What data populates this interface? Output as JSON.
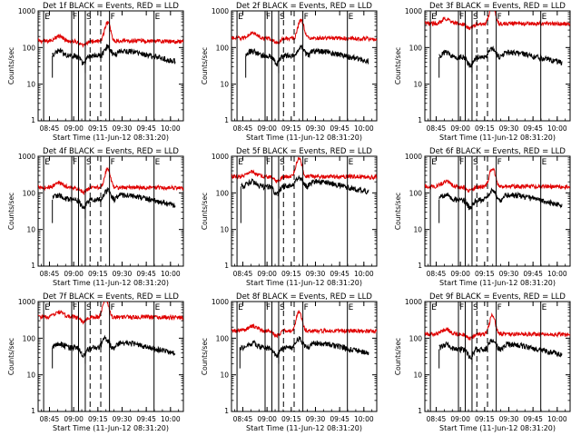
{
  "chart_data": [
    {
      "type": "line",
      "title": "Det 1f BLACK = Events, RED = LLD",
      "xlabel": "Start Time (11-Jun-12 08:31:20)",
      "ylabel": "Counts/sec",
      "yscale": "log",
      "ylim": [
        1,
        1000
      ],
      "xlim": [
        8.633,
        10.133
      ],
      "xticks": [
        "08:45",
        "09:00",
        "09:15",
        "09:30",
        "09:45",
        "10:00"
      ],
      "yticks": [
        "1",
        "10",
        "100",
        "1000"
      ],
      "events_start": 8.78,
      "events_end": 10.05,
      "red_base": 150,
      "black_base": 60,
      "peak_time": 9.35,
      "spike_time": 9.12,
      "lines": [
        {
          "t": 8.69,
          "label": "E",
          "style": "solid"
        },
        {
          "t": 8.98,
          "label": "F",
          "style": "solid"
        },
        {
          "t": 9.05,
          "label": "",
          "style": "solid"
        },
        {
          "t": 9.12,
          "label": "S",
          "style": "solid"
        },
        {
          "t": 9.17,
          "label": "",
          "style": "dashed"
        },
        {
          "t": 9.28,
          "label": "",
          "style": "dashed"
        },
        {
          "t": 9.37,
          "label": "F",
          "style": "solid"
        },
        {
          "t": 9.83,
          "label": "E",
          "style": "solid"
        }
      ]
    },
    {
      "type": "line",
      "title": "Det 2f BLACK = Events, RED = LLD",
      "xlabel": "Start Time (11-Jun-12 08:31:20)",
      "ylabel": "Counts/sec",
      "yscale": "log",
      "ylim": [
        1,
        1000
      ],
      "xlim": [
        8.633,
        10.133
      ],
      "xticks": [
        "08:45",
        "09:00",
        "09:15",
        "09:30",
        "09:45",
        "10:00"
      ],
      "yticks": [
        "1",
        "10",
        "100",
        "1000"
      ],
      "events_start": 8.78,
      "events_end": 10.05,
      "red_base": 180,
      "black_base": 60,
      "peak_time": 9.35,
      "spike_time": 9.12,
      "lines": [
        {
          "t": 8.69,
          "label": "E",
          "style": "solid"
        },
        {
          "t": 8.98,
          "label": "F",
          "style": "solid"
        },
        {
          "t": 9.05,
          "label": "",
          "style": "solid"
        },
        {
          "t": 9.12,
          "label": "S",
          "style": "solid"
        },
        {
          "t": 9.17,
          "label": "",
          "style": "dashed"
        },
        {
          "t": 9.28,
          "label": "",
          "style": "dashed"
        },
        {
          "t": 9.37,
          "label": "F",
          "style": "solid"
        },
        {
          "t": 9.83,
          "label": "E",
          "style": "solid"
        }
      ]
    },
    {
      "type": "line",
      "title": "Det 3f BLACK = Events, RED = LLD",
      "xlabel": "Start Time (11-Jun-12 08:31:20)",
      "ylabel": "Counts/sec",
      "yscale": "log",
      "ylim": [
        1,
        1000
      ],
      "xlim": [
        8.633,
        10.133
      ],
      "xticks": [
        "08:45",
        "09:00",
        "09:15",
        "09:30",
        "09:45",
        "10:00"
      ],
      "yticks": [
        "1",
        "10",
        "100",
        "1000"
      ],
      "events_start": 8.78,
      "events_end": 10.05,
      "red_base": 450,
      "black_base": 55,
      "peak_time": 9.33,
      "spike_time": 9.12,
      "lines": [
        {
          "t": 8.69,
          "label": "E",
          "style": "solid"
        },
        {
          "t": 8.98,
          "label": "F",
          "style": "solid"
        },
        {
          "t": 9.05,
          "label": "",
          "style": "solid"
        },
        {
          "t": 9.12,
          "label": "S",
          "style": "solid"
        },
        {
          "t": 9.17,
          "label": "",
          "style": "dashed"
        },
        {
          "t": 9.28,
          "label": "",
          "style": "dashed"
        },
        {
          "t": 9.37,
          "label": "F",
          "style": "solid"
        },
        {
          "t": 9.83,
          "label": "E",
          "style": "solid"
        }
      ]
    },
    {
      "type": "line",
      "title": "Det 4f BLACK = Events, RED = LLD",
      "xlabel": "Start Time (11-Jun-12 08:31:20)",
      "ylabel": "Counts/sec",
      "yscale": "log",
      "ylim": [
        1,
        1000
      ],
      "xlim": [
        8.633,
        10.133
      ],
      "xticks": [
        "08:45",
        "09:00",
        "09:15",
        "09:30",
        "09:45",
        "10:00"
      ],
      "yticks": [
        "1",
        "10",
        "100",
        "1000"
      ],
      "events_start": 8.78,
      "events_end": 10.05,
      "red_base": 140,
      "black_base": 65,
      "peak_time": 9.35,
      "spike_time": 9.12,
      "lines": [
        {
          "t": 8.69,
          "label": "E",
          "style": "solid"
        },
        {
          "t": 8.98,
          "label": "F",
          "style": "solid"
        },
        {
          "t": 9.05,
          "label": "",
          "style": "solid"
        },
        {
          "t": 9.12,
          "label": "S",
          "style": "solid"
        },
        {
          "t": 9.17,
          "label": "",
          "style": "dashed"
        },
        {
          "t": 9.28,
          "label": "",
          "style": "dashed"
        },
        {
          "t": 9.37,
          "label": "F",
          "style": "solid"
        },
        {
          "t": 9.83,
          "label": "E",
          "style": "solid"
        }
      ]
    },
    {
      "type": "line",
      "title": "Det 5f BLACK = Events, RED = LLD",
      "xlabel": "Start Time (11-Jun-12 08:31:20)",
      "ylabel": "Counts/sec",
      "yscale": "log",
      "ylim": [
        1,
        1000
      ],
      "xlim": [
        8.633,
        10.133
      ],
      "xticks": [
        "08:45",
        "09:00",
        "09:15",
        "09:30",
        "09:45",
        "10:00"
      ],
      "yticks": [
        "1",
        "10",
        "100",
        "1000"
      ],
      "events_start": 8.73,
      "events_end": 10.05,
      "red_base": 280,
      "black_base": 150,
      "peak_time": 9.33,
      "spike_time": 9.12,
      "lines": [
        {
          "t": 8.69,
          "label": "E",
          "style": "solid"
        },
        {
          "t": 8.98,
          "label": "F",
          "style": "solid"
        },
        {
          "t": 9.05,
          "label": "",
          "style": "solid"
        },
        {
          "t": 9.12,
          "label": "S",
          "style": "solid"
        },
        {
          "t": 9.17,
          "label": "",
          "style": "dashed"
        },
        {
          "t": 9.28,
          "label": "",
          "style": "dashed"
        },
        {
          "t": 9.37,
          "label": "F",
          "style": "solid"
        },
        {
          "t": 9.83,
          "label": "E",
          "style": "solid"
        }
      ]
    },
    {
      "type": "line",
      "title": "Det 6f BLACK = Events, RED = LLD",
      "xlabel": "Start Time (11-Jun-12 08:31:20)",
      "ylabel": "Counts/sec",
      "yscale": "log",
      "ylim": [
        1,
        1000
      ],
      "xlim": [
        8.633,
        10.133
      ],
      "xticks": [
        "08:45",
        "09:00",
        "09:15",
        "09:30",
        "09:45",
        "10:00"
      ],
      "yticks": [
        "1",
        "10",
        "100",
        "1000"
      ],
      "events_start": 8.78,
      "events_end": 10.05,
      "red_base": 150,
      "black_base": 65,
      "peak_time": 9.33,
      "spike_time": 9.12,
      "lines": [
        {
          "t": 8.69,
          "label": "E",
          "style": "solid"
        },
        {
          "t": 8.98,
          "label": "F",
          "style": "solid"
        },
        {
          "t": 9.05,
          "label": "",
          "style": "solid"
        },
        {
          "t": 9.12,
          "label": "S",
          "style": "solid"
        },
        {
          "t": 9.17,
          "label": "",
          "style": "dashed"
        },
        {
          "t": 9.28,
          "label": "",
          "style": "dashed"
        },
        {
          "t": 9.37,
          "label": "F",
          "style": "solid"
        },
        {
          "t": 9.83,
          "label": "E",
          "style": "solid"
        }
      ]
    },
    {
      "type": "line",
      "title": "Det 7f BLACK = Events, RED = LLD",
      "xlabel": "Start Time (11-Jun-12 08:31:20)",
      "ylabel": "Counts/sec",
      "yscale": "log",
      "ylim": [
        1,
        1000
      ],
      "xlim": [
        8.633,
        10.133
      ],
      "xticks": [
        "08:45",
        "09:00",
        "09:15",
        "09:30",
        "09:45",
        "10:00"
      ],
      "yticks": [
        "1",
        "10",
        "100",
        "1000"
      ],
      "events_start": 8.78,
      "events_end": 10.05,
      "red_base": 380,
      "black_base": 55,
      "peak_time": 9.33,
      "spike_time": 9.12,
      "lines": [
        {
          "t": 8.69,
          "label": "E",
          "style": "solid"
        },
        {
          "t": 8.98,
          "label": "F",
          "style": "solid"
        },
        {
          "t": 9.05,
          "label": "",
          "style": "solid"
        },
        {
          "t": 9.12,
          "label": "S",
          "style": "solid"
        },
        {
          "t": 9.17,
          "label": "",
          "style": "dashed"
        },
        {
          "t": 9.28,
          "label": "",
          "style": "dashed"
        },
        {
          "t": 9.37,
          "label": "F",
          "style": "solid"
        },
        {
          "t": 9.83,
          "label": "E",
          "style": "solid"
        }
      ]
    },
    {
      "type": "line",
      "title": "Det 8f BLACK = Events, RED = LLD",
      "xlabel": "Start Time (11-Jun-12 08:31:20)",
      "ylabel": "Counts/sec",
      "yscale": "log",
      "ylim": [
        1,
        1000
      ],
      "xlim": [
        8.633,
        10.133
      ],
      "xticks": [
        "08:45",
        "09:00",
        "09:15",
        "09:30",
        "09:45",
        "10:00"
      ],
      "yticks": [
        "1",
        "10",
        "100",
        "1000"
      ],
      "events_start": 8.72,
      "events_end": 10.05,
      "red_base": 160,
      "black_base": 55,
      "peak_time": 9.33,
      "spike_time": 9.12,
      "lines": [
        {
          "t": 8.69,
          "label": "E",
          "style": "solid"
        },
        {
          "t": 8.98,
          "label": "F",
          "style": "solid"
        },
        {
          "t": 9.05,
          "label": "",
          "style": "solid"
        },
        {
          "t": 9.12,
          "label": "S",
          "style": "solid"
        },
        {
          "t": 9.17,
          "label": "",
          "style": "dashed"
        },
        {
          "t": 9.28,
          "label": "",
          "style": "dashed"
        },
        {
          "t": 9.37,
          "label": "F",
          "style": "solid"
        },
        {
          "t": 9.83,
          "label": "E",
          "style": "solid"
        }
      ]
    },
    {
      "type": "line",
      "title": "Det 9f BLACK = Events, RED = LLD",
      "xlabel": "Start Time (11-Jun-12 08:31:20)",
      "ylabel": "Counts/sec",
      "yscale": "log",
      "ylim": [
        1,
        1000
      ],
      "xlim": [
        8.633,
        10.133
      ],
      "xticks": [
        "08:45",
        "09:00",
        "09:15",
        "09:30",
        "09:45",
        "10:00"
      ],
      "yticks": [
        "1",
        "10",
        "100",
        "1000"
      ],
      "events_start": 8.78,
      "events_end": 10.05,
      "red_base": 130,
      "black_base": 50,
      "peak_time": 9.33,
      "spike_time": 9.12,
      "lines": [
        {
          "t": 8.69,
          "label": "E",
          "style": "solid"
        },
        {
          "t": 8.98,
          "label": "F",
          "style": "solid"
        },
        {
          "t": 9.05,
          "label": "",
          "style": "solid"
        },
        {
          "t": 9.12,
          "label": "S",
          "style": "solid"
        },
        {
          "t": 9.17,
          "label": "",
          "style": "dashed"
        },
        {
          "t": 9.28,
          "label": "",
          "style": "dashed"
        },
        {
          "t": 9.37,
          "label": "F",
          "style": "solid"
        },
        {
          "t": 9.83,
          "label": "E",
          "style": "solid"
        }
      ]
    }
  ],
  "colors": {
    "lld": "#e00000",
    "events": "#000000",
    "axes": "#000000"
  }
}
